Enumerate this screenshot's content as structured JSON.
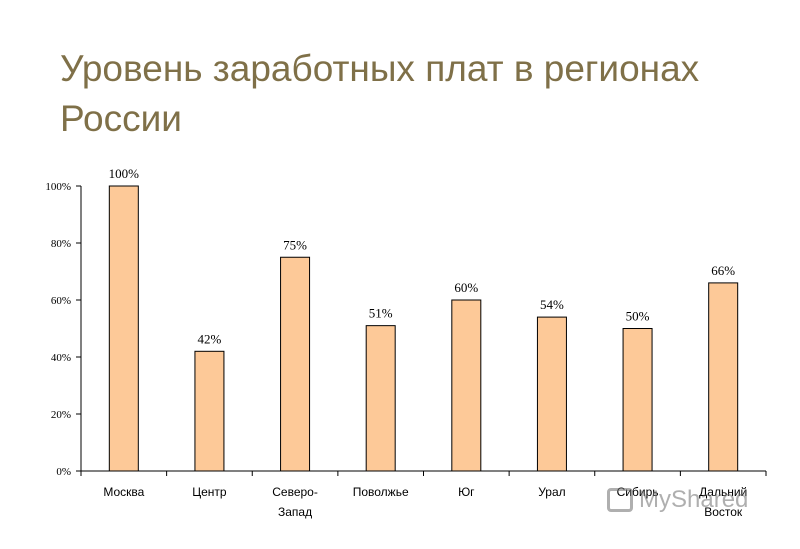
{
  "page": {
    "title": "Уровень заработных плат в регионах России"
  },
  "chart_data": {
    "type": "bar",
    "title": "",
    "xlabel": "",
    "ylabel": "",
    "categories": [
      "Москва",
      "Центр",
      "Северо-Запад",
      "Поволжье",
      "Юг",
      "Урал",
      "Сибирь",
      "Дальний Восток"
    ],
    "category_lines": [
      [
        "Москва"
      ],
      [
        "Центр"
      ],
      [
        "Северо-",
        "Запад"
      ],
      [
        "Поволжье"
      ],
      [
        "Юг"
      ],
      [
        "Урал"
      ],
      [
        "Сибирь"
      ],
      [
        "Дальний",
        "Восток"
      ]
    ],
    "values": [
      100,
      42,
      75,
      51,
      60,
      54,
      50,
      66
    ],
    "value_labels": [
      "100%",
      "42%",
      "75%",
      "51%",
      "60%",
      "54%",
      "50%",
      "66%"
    ],
    "ylim": [
      0,
      100
    ],
    "yticks": [
      0,
      20,
      40,
      60,
      80,
      100
    ],
    "ytick_labels": [
      "0%",
      "20%",
      "40%",
      "60%",
      "80%",
      "100%"
    ],
    "grid": false,
    "legend": "none",
    "colors": {
      "bar_fill": "#fdc998",
      "bar_stroke": "#000000",
      "title": "#7f7048"
    }
  },
  "watermark": {
    "text": "MyShared"
  }
}
